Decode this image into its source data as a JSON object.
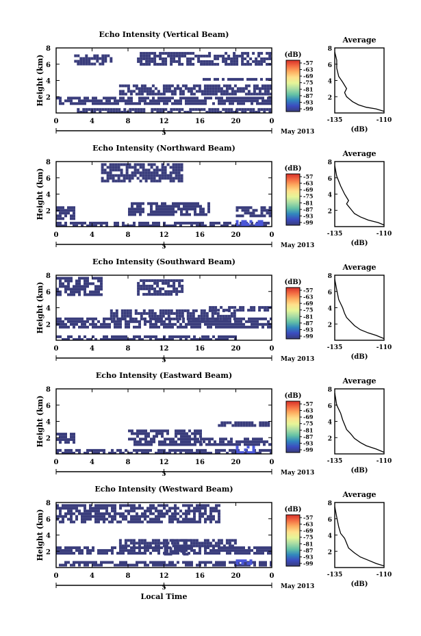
{
  "chart_data": [
    {
      "type": "heatmap",
      "title": "Echo Intensity (Vertical Beam)",
      "ylabel": "Height (km)",
      "xticks": [
        "0",
        "4",
        "8",
        "12",
        "16",
        "20",
        "0"
      ],
      "yticks": [
        "2",
        "4",
        "6",
        "8"
      ],
      "xlim": [
        0,
        24
      ],
      "ylim": [
        0,
        8
      ],
      "date_label": "May 2013",
      "date_marker": "5",
      "colorbar": {
        "unit": "(dB)",
        "levels": [
          "-57",
          "-63",
          "-69",
          "-75",
          "-81",
          "-87",
          "-93",
          "-99"
        ]
      },
      "echo_layers": [
        {
          "hours": [
            2,
            24
          ],
          "km": [
            0.2,
            0.6
          ],
          "intensity_db": -99
        },
        {
          "hours": [
            0,
            24
          ],
          "km": [
            1.2,
            2.0
          ],
          "intensity_db": -99
        },
        {
          "hours": [
            7,
            24
          ],
          "km": [
            2.2,
            3.5
          ],
          "intensity_db": -99
        },
        {
          "hours": [
            16,
            24
          ],
          "km": [
            4.0,
            4.3
          ],
          "intensity_db": -99
        },
        {
          "hours": [
            2,
            6
          ],
          "km": [
            6.0,
            7.2
          ],
          "intensity_db": -99
        },
        {
          "hours": [
            9,
            24
          ],
          "km": [
            6.0,
            7.5
          ],
          "intensity_db": -99
        }
      ],
      "average_profile": {
        "title": "Average",
        "xlabel": "(dB)",
        "xticks": [
          "-135",
          "-110"
        ],
        "yticks": [
          "2",
          "4",
          "6",
          "8"
        ],
        "xlim": [
          -135,
          -110
        ],
        "ylim": [
          0,
          8
        ],
        "x": [
          -110,
          -114,
          -119,
          -123,
          -126,
          -129,
          -130,
          -129,
          -131,
          -133,
          -134,
          -134,
          -135
        ],
        "y": [
          0.2,
          0.5,
          0.7,
          1.0,
          1.4,
          2.0,
          2.5,
          3.0,
          3.8,
          4.5,
          5.5,
          6.5,
          7.5
        ]
      }
    },
    {
      "type": "heatmap",
      "title": "Echo Intensity (Northward Beam)",
      "ylabel": "Height (km)",
      "xticks": [
        "0",
        "4",
        "8",
        "12",
        "16",
        "20",
        "0"
      ],
      "yticks": [
        "2",
        "4",
        "6",
        "8"
      ],
      "xlim": [
        0,
        24
      ],
      "ylim": [
        0,
        8
      ],
      "date_label": "May 2013",
      "date_marker": "5",
      "colorbar": {
        "unit": "(dB)",
        "levels": [
          "-57",
          "-63",
          "-69",
          "-75",
          "-81",
          "-87",
          "-93",
          "-99"
        ]
      },
      "echo_layers": [
        {
          "hours": [
            0,
            24
          ],
          "km": [
            0.1,
            0.6
          ],
          "intensity_db": -99
        },
        {
          "hours": [
            0,
            2
          ],
          "km": [
            1.0,
            2.5
          ],
          "intensity_db": -99
        },
        {
          "hours": [
            8,
            17
          ],
          "km": [
            1.6,
            3.0
          ],
          "intensity_db": -99
        },
        {
          "hours": [
            20,
            24
          ],
          "km": [
            1.2,
            2.5
          ],
          "intensity_db": -99
        },
        {
          "hours": [
            20,
            23
          ],
          "km": [
            0.1,
            0.8
          ],
          "intensity_db": -93
        },
        {
          "hours": [
            5,
            14
          ],
          "km": [
            5.5,
            7.8
          ],
          "intensity_db": -99
        }
      ],
      "average_profile": {
        "title": "Average",
        "xlabel": "(dB)",
        "xticks": [
          "-135",
          "-110"
        ],
        "yticks": [
          "2",
          "4",
          "6",
          "8"
        ],
        "xlim": [
          -135,
          -110
        ],
        "ylim": [
          0,
          8
        ],
        "x": [
          -110,
          -113,
          -118,
          -122,
          -125,
          -127,
          -129,
          -128,
          -130,
          -132,
          -134,
          -135
        ],
        "y": [
          0.2,
          0.5,
          0.8,
          1.2,
          1.6,
          2.2,
          2.8,
          3.2,
          4.0,
          5.0,
          6.2,
          7.5
        ]
      }
    },
    {
      "type": "heatmap",
      "title": "Echo Intensity (Southward Beam)",
      "ylabel": "Height (km)",
      "xticks": [
        "0",
        "4",
        "8",
        "12",
        "16",
        "20",
        "0"
      ],
      "yticks": [
        "2",
        "4",
        "6",
        "8"
      ],
      "xlim": [
        0,
        24
      ],
      "ylim": [
        0,
        8
      ],
      "date_label": "May 2013",
      "date_marker": "5",
      "colorbar": {
        "unit": "(dB)",
        "levels": [
          "-57",
          "-63",
          "-69",
          "-75",
          "-81",
          "-87",
          "-93",
          "-99"
        ]
      },
      "echo_layers": [
        {
          "hours": [
            0,
            20
          ],
          "km": [
            0.1,
            0.6
          ],
          "intensity_db": -99
        },
        {
          "hours": [
            0,
            24
          ],
          "km": [
            1.6,
            2.8
          ],
          "intensity_db": -99
        },
        {
          "hours": [
            6,
            20
          ],
          "km": [
            2.5,
            3.8
          ],
          "intensity_db": -99
        },
        {
          "hours": [
            0,
            5
          ],
          "km": [
            5.5,
            7.8
          ],
          "intensity_db": -99
        },
        {
          "hours": [
            9,
            14
          ],
          "km": [
            5.8,
            7.5
          ],
          "intensity_db": -99
        },
        {
          "hours": [
            17,
            24
          ],
          "km": [
            3.8,
            4.2
          ],
          "intensity_db": -99
        }
      ],
      "average_profile": {
        "title": "Average",
        "xlabel": "(dB)",
        "xticks": [
          "-135",
          "-110"
        ],
        "yticks": [
          "2",
          "4",
          "6",
          "8"
        ],
        "xlim": [
          -135,
          -110
        ],
        "ylim": [
          0,
          8
        ],
        "x": [
          -110,
          -114,
          -118,
          -122,
          -125,
          -127,
          -129,
          -130,
          -131,
          -133,
          -134,
          -135
        ],
        "y": [
          0.2,
          0.6,
          0.9,
          1.3,
          1.8,
          2.3,
          2.8,
          3.3,
          4.0,
          5.0,
          6.2,
          7.5
        ]
      }
    },
    {
      "type": "heatmap",
      "title": "Echo Intensity (Eastward Beam)",
      "ylabel": "Height (km)",
      "xticks": [
        "0",
        "4",
        "8",
        "12",
        "16",
        "20",
        "0"
      ],
      "yticks": [
        "2",
        "4",
        "6",
        "8"
      ],
      "xlim": [
        0,
        24
      ],
      "ylim": [
        0,
        8
      ],
      "date_label": "May 2013",
      "date_marker": "5",
      "colorbar": {
        "unit": "(dB)",
        "levels": [
          "-57",
          "-63",
          "-69",
          "-75",
          "-81",
          "-87",
          "-93",
          "-99"
        ]
      },
      "echo_layers": [
        {
          "hours": [
            0,
            24
          ],
          "km": [
            0.1,
            0.6
          ],
          "intensity_db": -99
        },
        {
          "hours": [
            0,
            2
          ],
          "km": [
            1.5,
            2.6
          ],
          "intensity_db": -99
        },
        {
          "hours": [
            8,
            16
          ],
          "km": [
            1.2,
            3.0
          ],
          "intensity_db": -99
        },
        {
          "hours": [
            16,
            24
          ],
          "km": [
            1.2,
            2.0
          ],
          "intensity_db": -99
        },
        {
          "hours": [
            20,
            22
          ],
          "km": [
            0.3,
            1.0
          ],
          "intensity_db": -93
        },
        {
          "hours": [
            18,
            24
          ],
          "km": [
            3.6,
            4.0
          ],
          "intensity_db": -99
        }
      ],
      "average_profile": {
        "title": "Average",
        "xlabel": "(dB)",
        "xticks": [
          "-135",
          "-110"
        ],
        "yticks": [
          "2",
          "4",
          "6",
          "8"
        ],
        "xlim": [
          -135,
          -110
        ],
        "ylim": [
          0,
          8
        ],
        "x": [
          -110,
          -114,
          -119,
          -122,
          -125,
          -127,
          -129,
          -130,
          -131,
          -132,
          -134,
          -135
        ],
        "y": [
          0.2,
          0.6,
          1.0,
          1.4,
          1.9,
          2.5,
          3.0,
          3.6,
          4.2,
          5.0,
          6.0,
          7.5
        ]
      }
    },
    {
      "type": "heatmap",
      "title": "Echo Intensity (Westward Beam)",
      "ylabel": "Height (km)",
      "xlabel": "Local Time",
      "xticks": [
        "0",
        "4",
        "8",
        "12",
        "16",
        "20",
        "0"
      ],
      "yticks": [
        "2",
        "4",
        "6",
        "8"
      ],
      "xlim": [
        0,
        24
      ],
      "ylim": [
        0,
        8
      ],
      "date_label": "May 2013",
      "date_marker": "5",
      "colorbar": {
        "unit": "(dB)",
        "levels": [
          "-57",
          "-63",
          "-69",
          "-75",
          "-81",
          "-87",
          "-93",
          "-99"
        ]
      },
      "echo_layers": [
        {
          "hours": [
            0,
            24
          ],
          "km": [
            0.2,
            0.8
          ],
          "intensity_db": -99
        },
        {
          "hours": [
            0,
            24
          ],
          "km": [
            1.6,
            2.6
          ],
          "intensity_db": -99
        },
        {
          "hours": [
            7,
            20
          ],
          "km": [
            2.5,
            3.5
          ],
          "intensity_db": -99
        },
        {
          "hours": [
            12,
            15
          ],
          "km": [
            1.6,
            3.5
          ],
          "intensity_db": -99
        },
        {
          "hours": [
            0,
            18
          ],
          "km": [
            5.5,
            7.8
          ],
          "intensity_db": -99
        },
        {
          "hours": [
            20,
            22
          ],
          "km": [
            0.6,
            1.0
          ],
          "intensity_db": -93
        }
      ],
      "average_profile": {
        "title": "Average",
        "xlabel": "(dB)",
        "xticks": [
          "-135",
          "-110"
        ],
        "yticks": [
          "2",
          "4",
          "6",
          "8"
        ],
        "xlim": [
          -135,
          -110
        ],
        "ylim": [
          0,
          8
        ],
        "x": [
          -110,
          -114,
          -118,
          -122,
          -125,
          -128,
          -129,
          -130,
          -132,
          -133,
          -134,
          -135
        ],
        "y": [
          0.2,
          0.5,
          0.9,
          1.3,
          1.8,
          2.4,
          3.0,
          3.6,
          4.2,
          5.0,
          6.2,
          7.5
        ]
      }
    }
  ]
}
